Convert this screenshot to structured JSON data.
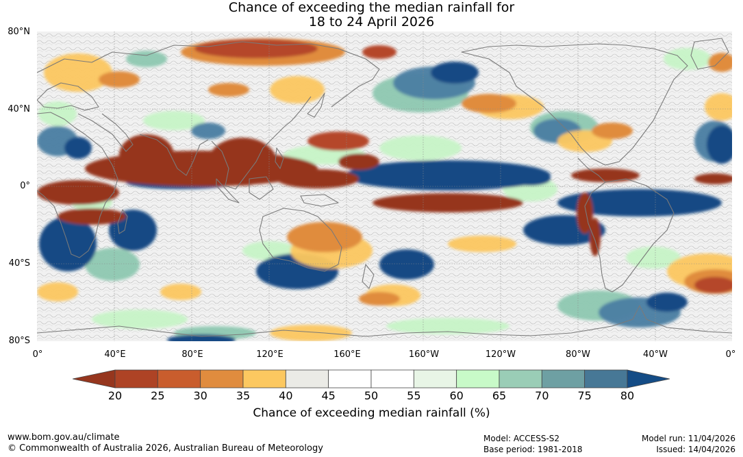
{
  "title": {
    "line1": "Chance of exceeding the median rainfall for",
    "line2": "18 to 24 April 2026"
  },
  "map": {
    "lat_labels": [
      "80°N",
      "40°N",
      "0°",
      "40°S",
      "80°S"
    ],
    "lon_labels": [
      "0°",
      "40°E",
      "80°E",
      "120°E",
      "160°E",
      "160°W",
      "120°W",
      "80°W",
      "40°W",
      "0°"
    ],
    "colors": {
      "ocean_base": "#f3f3f3",
      "coast": "#7a7a7a",
      "grid": "#999999"
    }
  },
  "colorbar": {
    "ticks": [
      "20",
      "25",
      "30",
      "35",
      "40",
      "45",
      "50",
      "55",
      "60",
      "65",
      "70",
      "75",
      "80"
    ],
    "below_color": "#96361e",
    "above_color": "#144c86",
    "colors": [
      "#ae4325",
      "#c95d2d",
      "#e08c3e",
      "#fcc860",
      "#ebebe6",
      "#ffffff",
      "#ffffff",
      "#e8f5e6",
      "#c8fac8",
      "#9acdb6",
      "#6ea0a3",
      "#477896"
    ],
    "label": "Chance of exceeding median rainfall (%)"
  },
  "footer": {
    "url": "www.bom.gov.au/climate",
    "copyright": "© Commonwealth of Australia 2026, Australian Bureau of Meteorology",
    "model": "Model: ACCESS-S2",
    "base_period": "Base period: 1981-2018",
    "model_run": "Model run: 11/04/2026",
    "issued": "Issued: 14/04/2026"
  }
}
